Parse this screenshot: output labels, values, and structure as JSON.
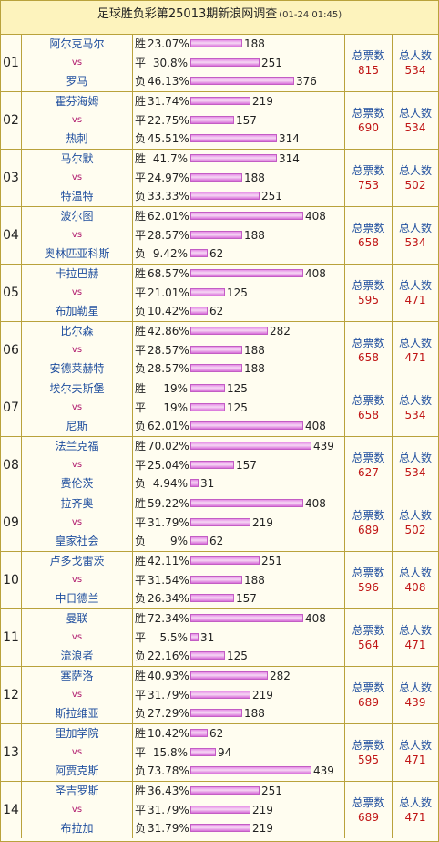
{
  "title": "足球胜负彩第25013期新浪网调查",
  "timestamp": "(01-24 01:45)",
  "labels": {
    "win": "胜",
    "draw": "平",
    "lose": "负",
    "vs": "vs",
    "total_tickets": "总票数",
    "total_people": "总人数"
  },
  "colors": {
    "border": "#b9a23c",
    "team": "#1f4e9e",
    "vs": "#b01a6e",
    "number": "#c01616",
    "bar": "#e58ee6"
  },
  "matches": [
    {
      "no": "01",
      "home": "阿尔克马尔",
      "away": "罗马",
      "win_pct": "23.07%",
      "win": 188,
      "draw_pct": "30.8%",
      "draw": 251,
      "lose_pct": "46.13%",
      "lose": 376,
      "tickets": 815,
      "people": 534
    },
    {
      "no": "02",
      "home": "霍芬海姆",
      "away": "热刺",
      "win_pct": "31.74%",
      "win": 219,
      "draw_pct": "22.75%",
      "draw": 157,
      "lose_pct": "45.51%",
      "lose": 314,
      "tickets": 690,
      "people": 534
    },
    {
      "no": "03",
      "home": "马尔默",
      "away": "特温特",
      "win_pct": "41.7%",
      "win": 314,
      "draw_pct": "24.97%",
      "draw": 188,
      "lose_pct": "33.33%",
      "lose": 251,
      "tickets": 753,
      "people": 502
    },
    {
      "no": "04",
      "home": "波尔图",
      "away": "奥林匹亚科斯",
      "win_pct": "62.01%",
      "win": 408,
      "draw_pct": "28.57%",
      "draw": 188,
      "lose_pct": "9.42%",
      "lose": 62,
      "tickets": 658,
      "people": 534
    },
    {
      "no": "05",
      "home": "卡拉巴赫",
      "away": "布加勒星",
      "win_pct": "68.57%",
      "win": 408,
      "draw_pct": "21.01%",
      "draw": 125,
      "lose_pct": "10.42%",
      "lose": 62,
      "tickets": 595,
      "people": 471
    },
    {
      "no": "06",
      "home": "比尔森",
      "away": "安德莱赫特",
      "win_pct": "42.86%",
      "win": 282,
      "draw_pct": "28.57%",
      "draw": 188,
      "lose_pct": "28.57%",
      "lose": 188,
      "tickets": 658,
      "people": 471
    },
    {
      "no": "07",
      "home": "埃尔夫斯堡",
      "away": "尼斯",
      "win_pct": "19%",
      "win": 125,
      "draw_pct": "19%",
      "draw": 125,
      "lose_pct": "62.01%",
      "lose": 408,
      "tickets": 658,
      "people": 534
    },
    {
      "no": "08",
      "home": "法兰克福",
      "away": "费伦茨",
      "win_pct": "70.02%",
      "win": 439,
      "draw_pct": "25.04%",
      "draw": 157,
      "lose_pct": "4.94%",
      "lose": 31,
      "tickets": 627,
      "people": 534
    },
    {
      "no": "09",
      "home": "拉齐奥",
      "away": "皇家社会",
      "win_pct": "59.22%",
      "win": 408,
      "draw_pct": "31.79%",
      "draw": 219,
      "lose_pct": "9%",
      "lose": 62,
      "tickets": 689,
      "people": 502
    },
    {
      "no": "10",
      "home": "卢多戈雷茨",
      "away": "中日德兰",
      "win_pct": "42.11%",
      "win": 251,
      "draw_pct": "31.54%",
      "draw": 188,
      "lose_pct": "26.34%",
      "lose": 157,
      "tickets": 596,
      "people": 408
    },
    {
      "no": "11",
      "home": "曼联",
      "away": "流浪者",
      "win_pct": "72.34%",
      "win": 408,
      "draw_pct": "5.5%",
      "draw": 31,
      "lose_pct": "22.16%",
      "lose": 125,
      "tickets": 564,
      "people": 471
    },
    {
      "no": "12",
      "home": "塞萨洛",
      "away": "斯拉维亚",
      "win_pct": "40.93%",
      "win": 282,
      "draw_pct": "31.79%",
      "draw": 219,
      "lose_pct": "27.29%",
      "lose": 188,
      "tickets": 689,
      "people": 439
    },
    {
      "no": "13",
      "home": "里加学院",
      "away": "阿贾克斯",
      "win_pct": "10.42%",
      "win": 62,
      "draw_pct": "15.8%",
      "draw": 94,
      "lose_pct": "73.78%",
      "lose": 439,
      "tickets": 595,
      "people": 471
    },
    {
      "no": "14",
      "home": "圣吉罗斯",
      "away": "布拉加",
      "win_pct": "36.43%",
      "win": 251,
      "draw_pct": "31.79%",
      "draw": 219,
      "lose_pct": "31.79%",
      "lose": 219,
      "tickets": 689,
      "people": 471
    }
  ]
}
